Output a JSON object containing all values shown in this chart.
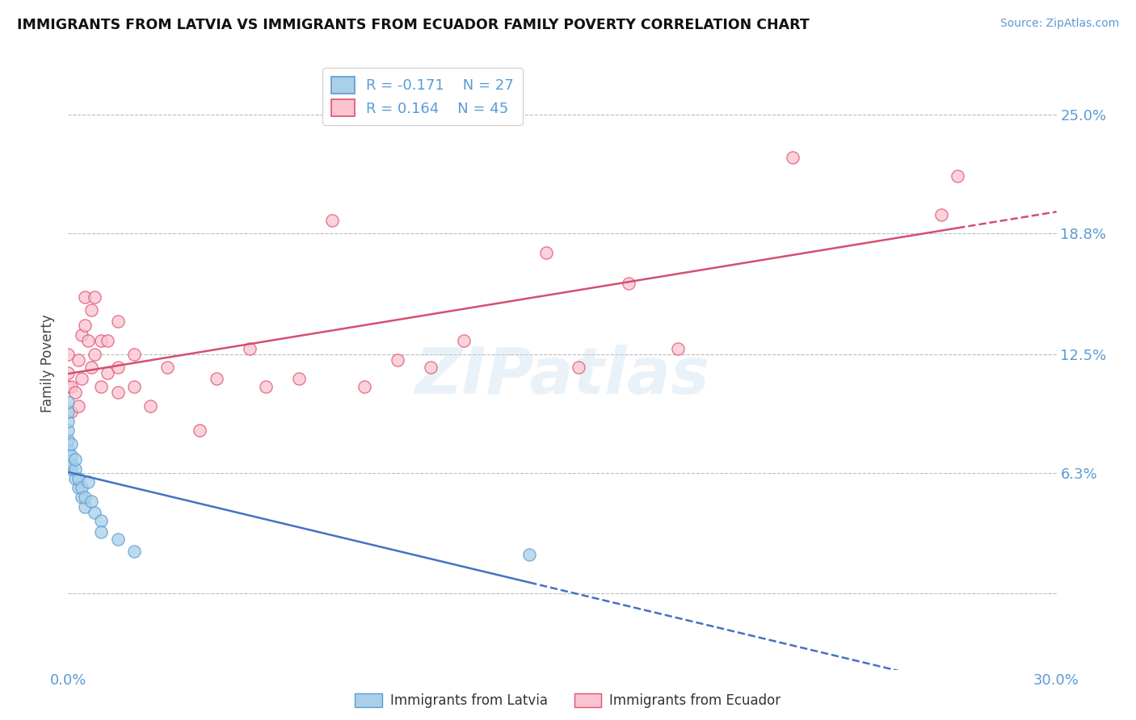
{
  "title": "IMMIGRANTS FROM LATVIA VS IMMIGRANTS FROM ECUADOR FAMILY POVERTY CORRELATION CHART",
  "source": "Source: ZipAtlas.com",
  "ylabel": "Family Poverty",
  "xlim": [
    0.0,
    0.3
  ],
  "ylim": [
    -0.04,
    0.28
  ],
  "yticks": [
    0.0,
    0.063,
    0.125,
    0.188,
    0.25
  ],
  "ytick_labels": [
    "",
    "6.3%",
    "12.5%",
    "18.8%",
    "25.0%"
  ],
  "xticks": [
    0.0,
    0.3
  ],
  "xtick_labels": [
    "0.0%",
    "30.0%"
  ],
  "legend_labels": [
    "Immigrants from Latvia",
    "Immigrants from Ecuador"
  ],
  "legend_R": [
    -0.171,
    0.164
  ],
  "legend_N": [
    27,
    45
  ],
  "color_latvia": "#a8d0e8",
  "color_ecuador": "#f9c4d0",
  "edge_color_latvia": "#5b9bd5",
  "edge_color_ecuador": "#e05070",
  "trendline_color_latvia": "#4472c4",
  "trendline_color_ecuador": "#d45070",
  "watermark": "ZIPatlas",
  "latvia_x": [
    0.0,
    0.0,
    0.0,
    0.0,
    0.0,
    0.0,
    0.001,
    0.001,
    0.001,
    0.001,
    0.002,
    0.002,
    0.002,
    0.003,
    0.003,
    0.004,
    0.004,
    0.005,
    0.005,
    0.006,
    0.007,
    0.008,
    0.01,
    0.01,
    0.015,
    0.02,
    0.14
  ],
  "latvia_y": [
    0.075,
    0.08,
    0.085,
    0.09,
    0.095,
    0.1,
    0.065,
    0.068,
    0.072,
    0.078,
    0.06,
    0.065,
    0.07,
    0.055,
    0.06,
    0.05,
    0.055,
    0.045,
    0.05,
    0.058,
    0.048,
    0.042,
    0.038,
    0.032,
    0.028,
    0.022,
    0.02
  ],
  "ecuador_x": [
    0.0,
    0.0,
    0.0,
    0.001,
    0.001,
    0.002,
    0.003,
    0.003,
    0.004,
    0.004,
    0.005,
    0.005,
    0.006,
    0.007,
    0.007,
    0.008,
    0.008,
    0.01,
    0.01,
    0.012,
    0.012,
    0.015,
    0.015,
    0.015,
    0.02,
    0.02,
    0.025,
    0.03,
    0.04,
    0.045,
    0.055,
    0.06,
    0.07,
    0.08,
    0.09,
    0.1,
    0.11,
    0.12,
    0.145,
    0.155,
    0.17,
    0.185,
    0.22,
    0.265,
    0.27
  ],
  "ecuador_y": [
    0.108,
    0.115,
    0.125,
    0.095,
    0.108,
    0.105,
    0.098,
    0.122,
    0.112,
    0.135,
    0.14,
    0.155,
    0.132,
    0.118,
    0.148,
    0.125,
    0.155,
    0.108,
    0.132,
    0.115,
    0.132,
    0.105,
    0.118,
    0.142,
    0.108,
    0.125,
    0.098,
    0.118,
    0.085,
    0.112,
    0.128,
    0.108,
    0.112,
    0.195,
    0.108,
    0.122,
    0.118,
    0.132,
    0.178,
    0.118,
    0.162,
    0.128,
    0.228,
    0.198,
    0.218
  ]
}
